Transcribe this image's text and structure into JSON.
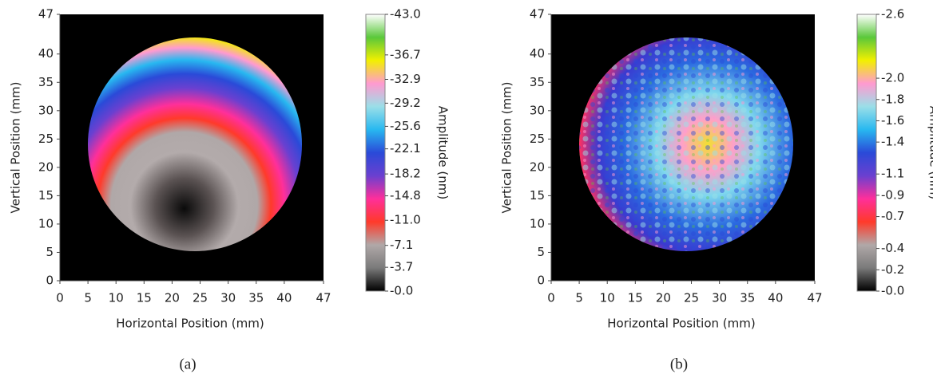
{
  "chart_data": [
    {
      "type": "heatmap",
      "xlabel": "Horizontal Position (mm)",
      "ylabel": "Vertical Position (mm)",
      "xlim": [
        0,
        47
      ],
      "ylim": [
        0,
        47
      ],
      "xticks": [
        0,
        5,
        10,
        15,
        20,
        25,
        30,
        35,
        40,
        47
      ],
      "yticks": [
        0,
        5,
        10,
        15,
        20,
        25,
        30,
        35,
        40,
        47
      ],
      "colorbar": {
        "label": "Amplitude (nm)",
        "lim": [
          0,
          43
        ],
        "colors": [
          "#000000",
          "#7a7a7a",
          "#b0a8a8",
          "#ff3a2a",
          "#ff2f9a",
          "#6a40d0",
          "#2a4ad8",
          "#28b8f0",
          "#9adfe8",
          "#ff9ad0",
          "#f2f000",
          "#5ac83a",
          "#ffffff"
        ],
        "ticks": [
          {
            "value": 0,
            "label": "-0.0"
          },
          {
            "value": 3.7,
            "label": "-3.7"
          },
          {
            "value": 7.1,
            "label": "-7.1"
          },
          {
            "value": 11,
            "label": "-11.0"
          },
          {
            "value": 14.8,
            "label": "-14.8"
          },
          {
            "value": 18.2,
            "label": "-18.2"
          },
          {
            "value": 22.1,
            "label": "-22.1"
          },
          {
            "value": 25.6,
            "label": "-25.6"
          },
          {
            "value": 29.2,
            "label": "-29.2"
          },
          {
            "value": 32.9,
            "label": "-32.9"
          },
          {
            "value": 36.7,
            "label": "-36.7"
          },
          {
            "value": 43,
            "label": "-43.0"
          }
        ]
      },
      "caption": "(a)"
    },
    {
      "type": "heatmap",
      "xlabel": "Horizontal Position (mm)",
      "ylabel": "Vertical Position (mm)",
      "xlim": [
        0,
        47
      ],
      "ylim": [
        0,
        47
      ],
      "xticks": [
        0,
        5,
        10,
        15,
        20,
        25,
        30,
        35,
        40,
        47
      ],
      "yticks": [
        0,
        5,
        10,
        15,
        20,
        25,
        30,
        35,
        40,
        47
      ],
      "colorbar": {
        "label": "Amplitude (nm)",
        "lim": [
          0,
          2.6
        ],
        "colors": [
          "#000000",
          "#7a7a7a",
          "#b0a8a8",
          "#ff3a2a",
          "#ff2f9a",
          "#6a40d0",
          "#2a4ad8",
          "#28b8f0",
          "#9adfe8",
          "#ff9ad0",
          "#f2f000",
          "#5ac83a",
          "#ffffff"
        ],
        "ticks": [
          {
            "value": 0,
            "label": "-0.0"
          },
          {
            "value": 0.2,
            "label": "-0.2"
          },
          {
            "value": 0.4,
            "label": "-0.4"
          },
          {
            "value": 0.7,
            "label": "-0.7"
          },
          {
            "value": 0.9,
            "label": "-0.9"
          },
          {
            "value": 1.1,
            "label": "-1.1"
          },
          {
            "value": 1.4,
            "label": "-1.4"
          },
          {
            "value": 1.6,
            "label": "-1.6"
          },
          {
            "value": 1.8,
            "label": "-1.8"
          },
          {
            "value": 2,
            "label": "-2.0"
          },
          {
            "value": 2.6,
            "label": "-2.6"
          }
        ]
      },
      "caption": "(b)"
    }
  ]
}
